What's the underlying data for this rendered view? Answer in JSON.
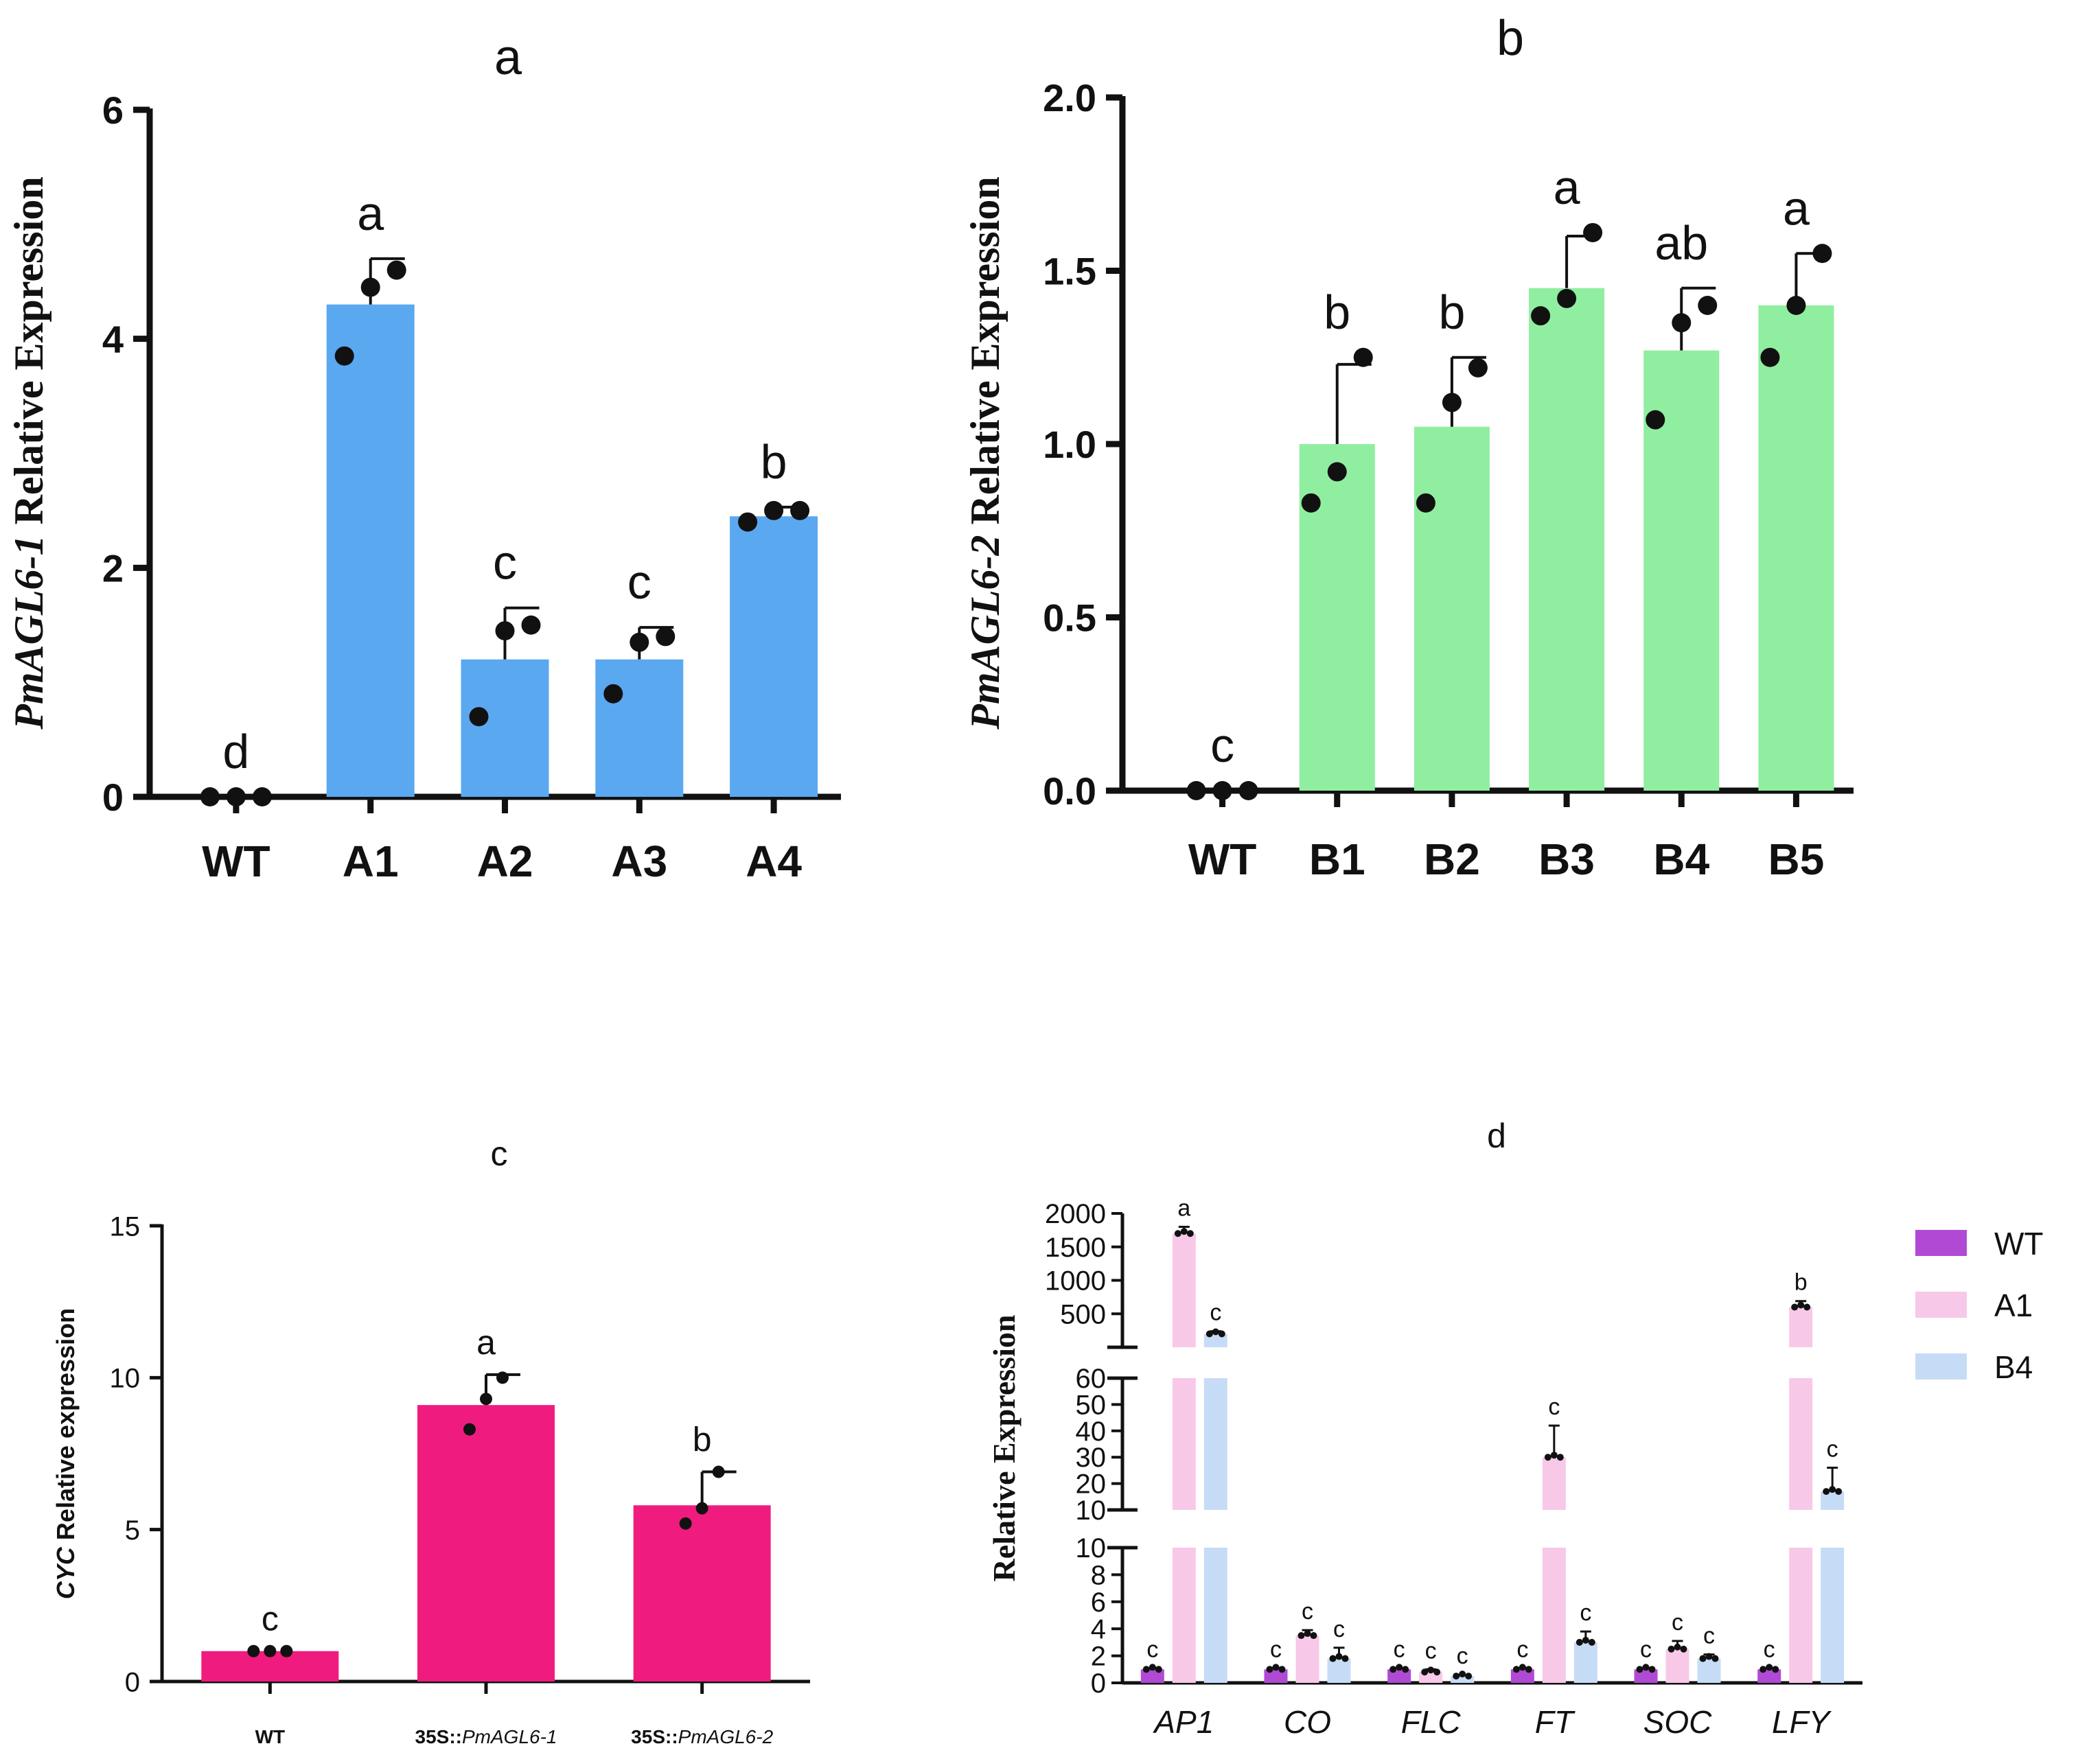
{
  "chart_data": [
    {
      "panel": "a",
      "type": "bar",
      "title": "a",
      "ylabel_italic": "PmAGL6-1",
      "ylabel_rest": " Relative Expression",
      "ylim": [
        0,
        6
      ],
      "yticks": [
        0,
        2,
        4,
        6
      ],
      "categories": [
        "WT",
        "A1",
        "A2",
        "A3",
        "A4"
      ],
      "values": [
        0.0,
        4.3,
        1.2,
        1.2,
        2.45
      ],
      "errors": [
        0.0,
        0.4,
        0.45,
        0.28,
        0.08
      ],
      "points": [
        [
          0,
          0,
          0
        ],
        [
          3.85,
          4.45,
          4.6
        ],
        [
          0.7,
          1.45,
          1.5
        ],
        [
          0.9,
          1.35,
          1.4
        ],
        [
          2.4,
          2.5,
          2.5
        ]
      ],
      "letters": [
        "d",
        "a",
        "c",
        "c",
        "b"
      ],
      "color": "#5aa8f0"
    },
    {
      "panel": "b",
      "type": "bar",
      "title": "b",
      "ylabel_italic": "PmAGL6-2",
      "ylabel_rest": " Relative Expression",
      "ylim": [
        0,
        2
      ],
      "yticks": [
        0.0,
        0.5,
        1.0,
        1.5,
        2.0
      ],
      "categories": [
        "WT",
        "B1",
        "B2",
        "B3",
        "B4",
        "B5"
      ],
      "values": [
        0.0,
        1.0,
        1.05,
        1.45,
        1.27,
        1.4
      ],
      "errors": [
        0.0,
        0.23,
        0.2,
        0.15,
        0.18,
        0.15
      ],
      "points": [
        [
          0,
          0,
          0
        ],
        [
          0.83,
          0.92,
          1.25
        ],
        [
          0.83,
          1.12,
          1.22
        ],
        [
          1.37,
          1.42,
          1.61
        ],
        [
          1.07,
          1.35,
          1.4
        ],
        [
          1.25,
          1.4,
          1.55
        ]
      ],
      "letters": [
        "c",
        "b",
        "b",
        "a",
        "ab",
        "a"
      ],
      "color": "#90eea0"
    },
    {
      "panel": "c",
      "type": "bar",
      "title": "c",
      "ylabel_prefix": "CYC",
      "ylabel_rest": " Relative expression",
      "ylim": [
        0,
        15
      ],
      "yticks": [
        0,
        5,
        10,
        15
      ],
      "categories": [
        "WT",
        "35S::PmAGL6-1",
        "35S::PmAGL6-2"
      ],
      "category_parts": [
        [
          "WT",
          ""
        ],
        [
          "35S::",
          "PmAGL6-1"
        ],
        [
          "35S::",
          "PmAGL6-2"
        ]
      ],
      "values": [
        1.0,
        9.1,
        5.8
      ],
      "errors": [
        0.0,
        1.0,
        1.1
      ],
      "points": [
        [
          1,
          1,
          1
        ],
        [
          8.3,
          9.3,
          10.0
        ],
        [
          5.2,
          5.7,
          6.9
        ]
      ],
      "letters": [
        "c",
        "a",
        "b"
      ],
      "color": "#f01b7e"
    },
    {
      "panel": "d",
      "type": "bar",
      "title": "d",
      "ylabel": "Relative Expression",
      "axis_segments": [
        {
          "range": [
            0,
            10
          ],
          "ticks": [
            0,
            2,
            4,
            6,
            8,
            10
          ]
        },
        {
          "range": [
            10,
            60
          ],
          "ticks": [
            10,
            20,
            30,
            40,
            50,
            60
          ]
        },
        {
          "range": [
            0,
            2000
          ],
          "ticks": [
            500,
            1000,
            1500,
            2000
          ]
        }
      ],
      "categories": [
        "AP1",
        "CO",
        "FLC",
        "FT",
        "SOC",
        "LFY"
      ],
      "series": [
        {
          "name": "WT",
          "color": "#b04ad4",
          "values": [
            1,
            1,
            1,
            1,
            1,
            1
          ],
          "errors": [
            0.1,
            0.1,
            0.1,
            0.1,
            0.1,
            0.1
          ],
          "letters": [
            "c",
            "c",
            "c",
            "c",
            "c",
            "c"
          ]
        },
        {
          "name": "A1",
          "color": "#f8c8e8",
          "values": [
            1700,
            3.5,
            0.8,
            30,
            2.5,
            600
          ],
          "errors": [
            100,
            0.4,
            0.2,
            12,
            0.6,
            90
          ],
          "letters": [
            "a",
            "c",
            "c",
            "c",
            "c",
            "b"
          ]
        },
        {
          "name": "B4",
          "color": "#c6dcf6",
          "values": [
            200,
            1.8,
            0.5,
            3.0,
            1.8,
            17
          ],
          "errors": [
            40,
            0.8,
            0.1,
            0.8,
            0.3,
            9
          ],
          "letters": [
            "c",
            "c",
            "c",
            "c",
            "c",
            "c"
          ]
        }
      ],
      "legend": [
        "WT",
        "A1",
        "B4"
      ],
      "legend_position": "right"
    }
  ]
}
